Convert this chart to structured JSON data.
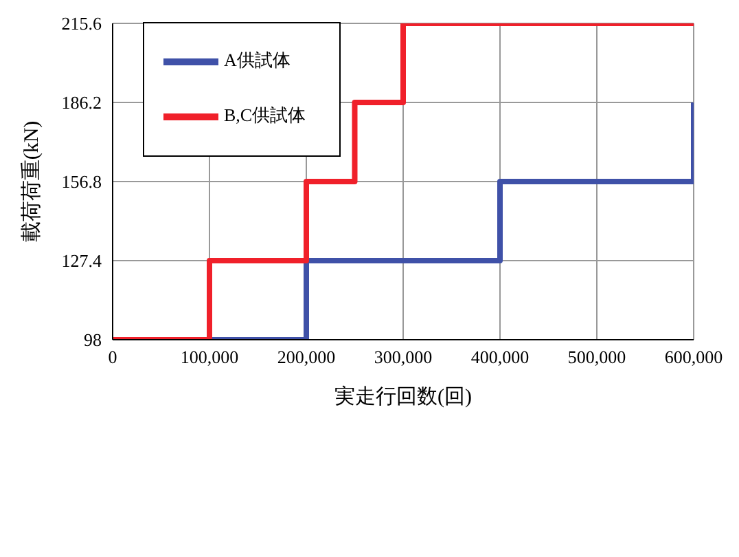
{
  "chart_data": {
    "type": "step",
    "xlabel": "実走行回数(回)",
    "ylabel": "載荷荷重(kN)",
    "xlim": [
      0,
      600000
    ],
    "xticks": [
      {
        "value": 0,
        "label": "0"
      },
      {
        "value": 100000,
        "label": "100,000"
      },
      {
        "value": 200000,
        "label": "200,000"
      },
      {
        "value": 300000,
        "label": "300,000"
      },
      {
        "value": 400000,
        "label": "400,000"
      },
      {
        "value": 500000,
        "label": "500,000"
      },
      {
        "value": 600000,
        "label": "600,000"
      }
    ],
    "ylim": [
      98,
      215.6
    ],
    "yticks": [
      98,
      127.4,
      156.8,
      186.2,
      215.6
    ],
    "grid": true,
    "legend": "top left",
    "line_style": "solid",
    "marker": "none",
    "series": [
      {
        "name": "A供試体",
        "color": "#3f51a8",
        "x": [
          0,
          200000,
          400000,
          600000
        ],
        "values": [
          98,
          127.4,
          156.8,
          186.2
        ]
      },
      {
        "name": "B,C供試体",
        "color": "#f0202a",
        "x": [
          0,
          100000,
          200000,
          250000,
          300000,
          600000
        ],
        "values": [
          98,
          127.4,
          156.8,
          186.2,
          215.6,
          215.6
        ]
      }
    ]
  }
}
